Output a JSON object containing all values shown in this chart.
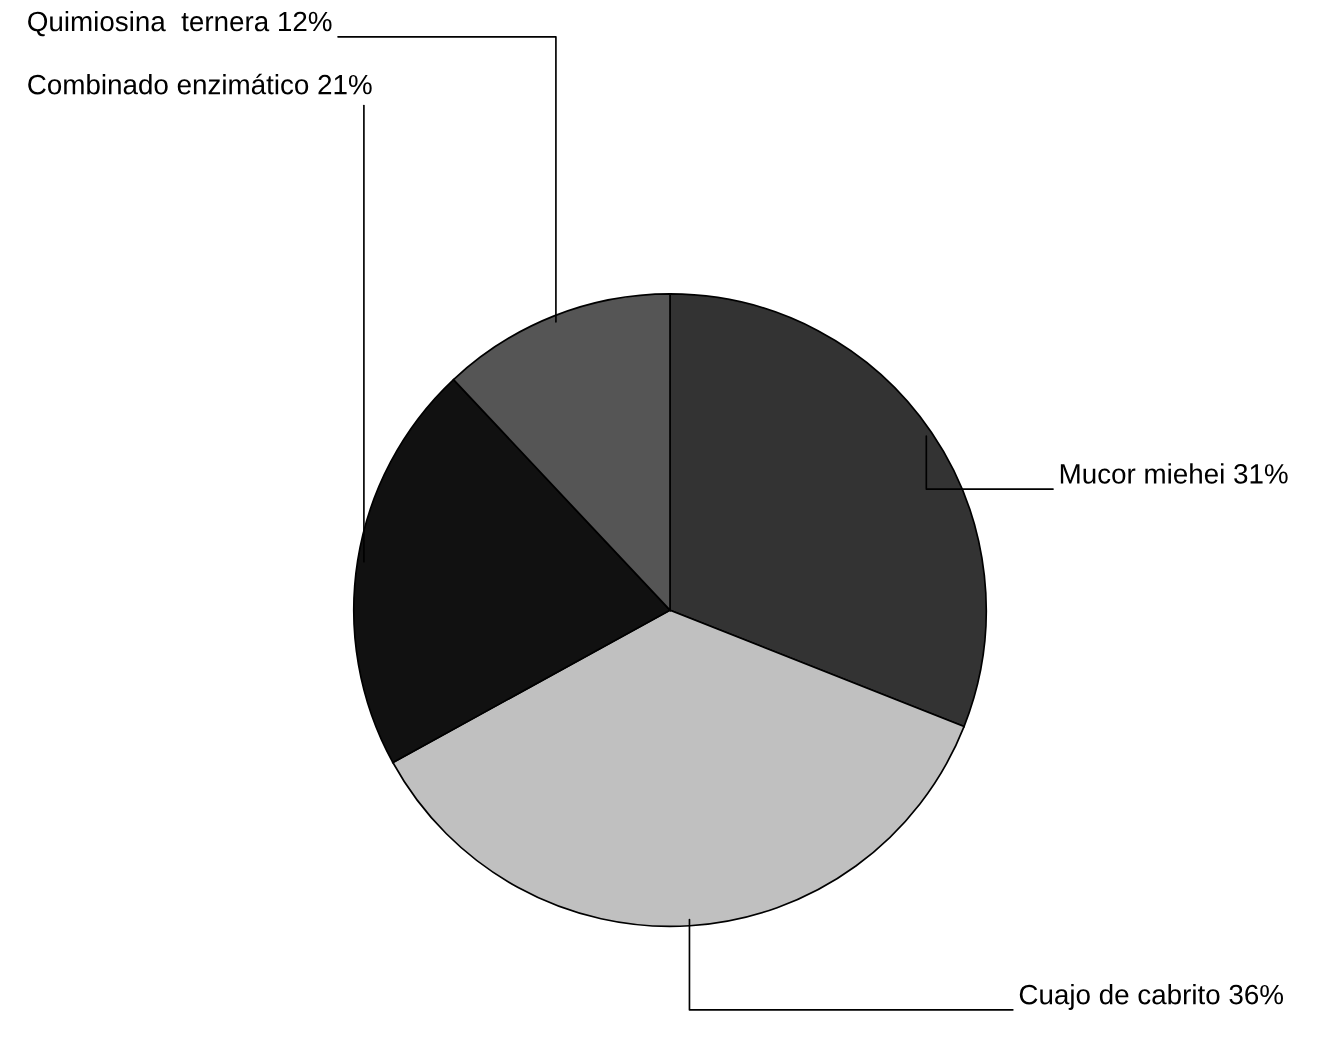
{
  "chart_data": {
    "type": "pie",
    "categories": [
      "Mucor miehei",
      "Cuajo de cabrito",
      "Combinado enzimático",
      "Quimiosina  ternera"
    ],
    "values": [
      31,
      36,
      21,
      12
    ],
    "value_labels": [
      "31%",
      "36%",
      "21%",
      "12%"
    ],
    "colors": [
      "#333333",
      "#c0c0c0",
      "#111111",
      "#555555"
    ],
    "legend": false
  }
}
